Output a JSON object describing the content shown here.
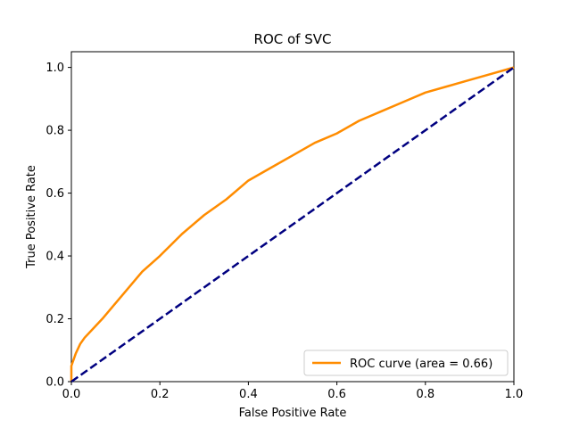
{
  "chart_data": {
    "type": "line",
    "title": "ROC of SVC",
    "xlabel": "False Positive Rate",
    "ylabel": "True Positive Rate",
    "xlim": [
      0.0,
      1.0
    ],
    "ylim": [
      0.0,
      1.05
    ],
    "x_ticks": [
      0.0,
      0.2,
      0.4,
      0.6,
      0.8,
      1.0
    ],
    "y_ticks": [
      0.0,
      0.2,
      0.4,
      0.6,
      0.8,
      1.0
    ],
    "x_tick_labels": [
      "0.0",
      "0.2",
      "0.4",
      "0.6",
      "0.8",
      "1.0"
    ],
    "y_tick_labels": [
      "0.0",
      "0.2",
      "0.4",
      "0.6",
      "0.8",
      "1.0"
    ],
    "grid": false,
    "legend": {
      "placement": "lower-right",
      "entries": [
        "ROC curve (area = 0.66)"
      ]
    },
    "series": [
      {
        "name": "ROC curve (area = 0.66)",
        "color": "#ff8c00",
        "style": "solid",
        "x": [
          0.0,
          0.0,
          0.01,
          0.02,
          0.03,
          0.05,
          0.07,
          0.1,
          0.13,
          0.16,
          0.2,
          0.25,
          0.3,
          0.35,
          0.4,
          0.45,
          0.5,
          0.55,
          0.6,
          0.65,
          0.7,
          0.75,
          0.8,
          0.85,
          0.9,
          0.95,
          1.0
        ],
        "y": [
          0.0,
          0.05,
          0.09,
          0.12,
          0.14,
          0.17,
          0.2,
          0.25,
          0.3,
          0.35,
          0.4,
          0.47,
          0.53,
          0.58,
          0.64,
          0.68,
          0.72,
          0.76,
          0.79,
          0.83,
          0.86,
          0.89,
          0.92,
          0.94,
          0.96,
          0.98,
          1.0
        ]
      },
      {
        "name": "",
        "color": "#000080",
        "style": "dashed",
        "x": [
          0.0,
          1.0
        ],
        "y": [
          0.0,
          1.0
        ]
      }
    ]
  }
}
